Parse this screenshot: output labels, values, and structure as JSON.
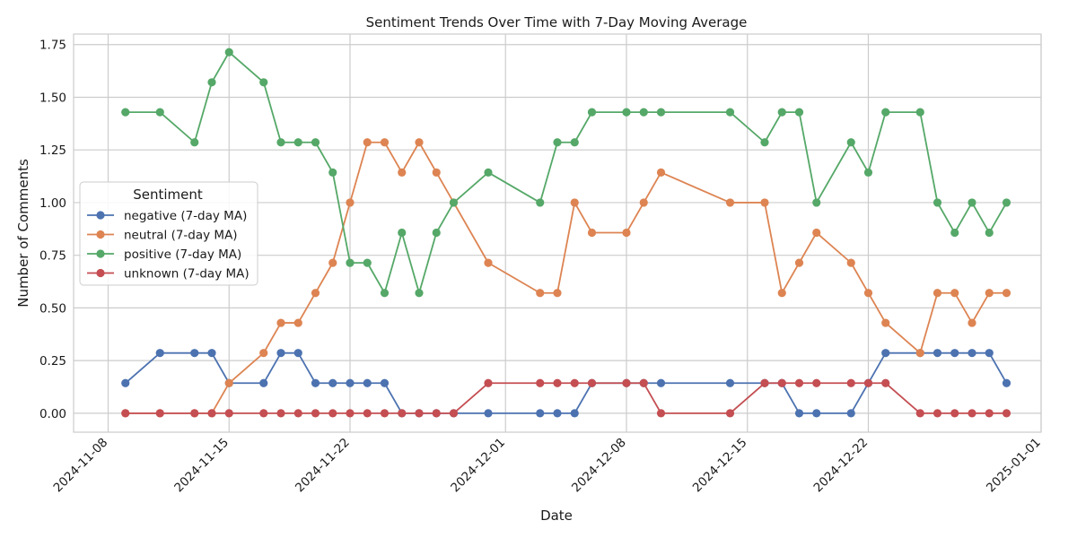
{
  "chart_data": {
    "type": "line",
    "title": "Sentiment Trends Over Time with 7-Day Moving Average",
    "xlabel": "Date",
    "ylabel": "Number of Comments",
    "xlim": [
      "2024-11-06",
      "2025-01-01"
    ],
    "ylim": [
      -0.09,
      1.8
    ],
    "x_ticks": [
      "2024-11-08",
      "2024-11-15",
      "2024-11-22",
      "2024-12-01",
      "2024-12-08",
      "2024-12-15",
      "2024-12-22",
      "2025-01-01"
    ],
    "y_ticks": [
      "0.00",
      "0.25",
      "0.50",
      "0.75",
      "1.00",
      "1.25",
      "1.50",
      "1.75"
    ],
    "grid": true,
    "legend": {
      "title": "Sentiment",
      "position": "center-left"
    },
    "x": [
      "2024-11-09",
      "2024-11-11",
      "2024-11-13",
      "2024-11-14",
      "2024-11-15",
      "2024-11-17",
      "2024-11-18",
      "2024-11-19",
      "2024-11-20",
      "2024-11-21",
      "2024-11-22",
      "2024-11-23",
      "2024-11-24",
      "2024-11-25",
      "2024-11-26",
      "2024-11-27",
      "2024-11-28",
      "2024-11-30",
      "2024-12-03",
      "2024-12-04",
      "2024-12-05",
      "2024-12-06",
      "2024-12-08",
      "2024-12-09",
      "2024-12-10",
      "2024-12-14",
      "2024-12-16",
      "2024-12-17",
      "2024-12-18",
      "2024-12-19",
      "2024-12-21",
      "2024-12-22",
      "2024-12-23",
      "2024-12-25",
      "2024-12-26",
      "2024-12-27",
      "2024-12-28",
      "2024-12-29",
      "2024-12-30"
    ],
    "series": [
      {
        "name": "negative (7-day MA)",
        "color": "#4c72b0",
        "values": [
          0.143,
          0.286,
          0.286,
          0.286,
          0.143,
          0.143,
          0.286,
          0.286,
          0.143,
          0.143,
          0.143,
          0.143,
          0.143,
          0,
          0,
          0,
          0,
          0,
          0,
          0,
          0,
          0.143,
          0.143,
          0.143,
          0.143,
          0.143,
          0.143,
          0.143,
          0,
          0,
          0,
          0.143,
          0.286,
          0.286,
          0.286,
          0.286,
          0.286,
          0.286,
          0.143
        ]
      },
      {
        "name": "neutral (7-day MA)",
        "color": "#dd8452",
        "values": [
          0,
          0,
          0,
          0,
          0.143,
          0.286,
          0.429,
          0.429,
          0.571,
          0.714,
          1.0,
          1.286,
          1.286,
          1.143,
          1.286,
          1.143,
          1.0,
          0.714,
          0.571,
          0.571,
          1.0,
          0.857,
          0.857,
          1.0,
          1.143,
          1.0,
          1.0,
          0.571,
          0.714,
          0.857,
          0.714,
          0.571,
          0.429,
          0.286,
          0.571,
          0.571,
          0.429,
          0.571,
          0.571
        ]
      },
      {
        "name": "positive (7-day MA)",
        "color": "#55a868",
        "values": [
          1.429,
          1.429,
          1.286,
          1.571,
          1.714,
          1.571,
          1.286,
          1.286,
          1.286,
          1.143,
          0.714,
          0.714,
          0.571,
          0.857,
          0.571,
          0.857,
          1.0,
          1.143,
          1.0,
          1.286,
          1.286,
          1.429,
          1.429,
          1.429,
          1.429,
          1.429,
          1.286,
          1.429,
          1.429,
          1.0,
          1.286,
          1.143,
          1.429,
          1.429,
          1.0,
          0.857,
          1.0,
          0.857,
          1.0
        ]
      },
      {
        "name": "unknown (7-day MA)",
        "color": "#c44e52",
        "values": [
          0,
          0,
          0,
          0,
          0,
          0,
          0,
          0,
          0,
          0,
          0,
          0,
          0,
          0,
          0,
          0,
          0,
          0.143,
          0.143,
          0.143,
          0.143,
          0.143,
          0.143,
          0.143,
          0,
          0,
          0.143,
          0.143,
          0.143,
          0.143,
          0.143,
          0.143,
          0.143,
          0,
          0,
          0,
          0,
          0,
          0
        ]
      }
    ]
  }
}
